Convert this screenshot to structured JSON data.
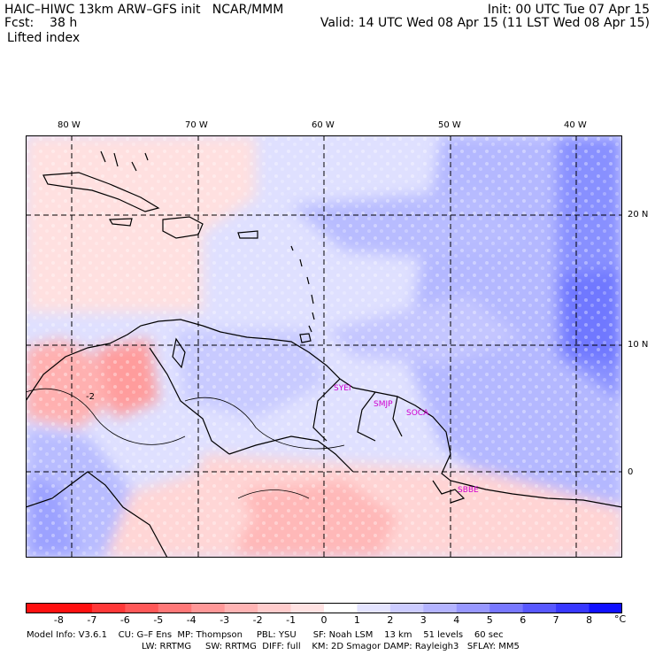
{
  "header": {
    "model_line": "HAIC–HIWC 13km ARW–GFS init   NCAR/MMM",
    "init_line": "Init: 00 UTC Tue 07 Apr 15",
    "fcst_line": "Fcst:    38 h",
    "valid_line": "Valid: 14 UTC Wed 08 Apr 15 (11 LST Wed 08 Apr 15)",
    "field_line": "Lifted index"
  },
  "map": {
    "lon_labels": [
      "80 W",
      "70 W",
      "60 W",
      "50 W",
      "40 W"
    ],
    "lat_labels": [
      "20 N",
      "10 N",
      "0"
    ],
    "contour_labels": [
      "-2"
    ],
    "stations": [
      "SYEI",
      "SMJP",
      "SOCA",
      "SBBE"
    ]
  },
  "colorbar": {
    "labels": [
      "-8",
      "-7",
      "-6",
      "-5",
      "-4",
      "-3",
      "-2",
      "-1",
      "0",
      "1",
      "2",
      "3",
      "4",
      "5",
      "6",
      "7",
      "8"
    ],
    "unit": "°C",
    "colors": [
      "#ff1010",
      "#ff3838",
      "#ff5858",
      "#ff7878",
      "#ff9898",
      "#ffb4b4",
      "#ffcccc",
      "#ffe2e2",
      "#ffffff",
      "#e4e4ff",
      "#ccccff",
      "#b4b4ff",
      "#9898ff",
      "#7878ff",
      "#5858ff",
      "#3838ff",
      "#1010ff"
    ]
  },
  "footer": {
    "line1": "Model Info: V3.6.1    CU: G–F Ens  MP: Thompson     PBL: YSU      SF: Noah LSM    13 km    51 levels    60 sec",
    "line2": "LW: RRTMG     SW: RRTMG  DIFF: full    KM: 2D Smagor DAMP: Rayleigh3   SFLAY: MM5"
  }
}
